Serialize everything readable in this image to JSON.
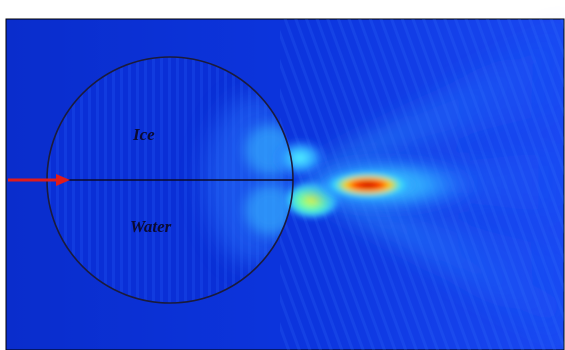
{
  "figure": {
    "labels": {
      "upper": "Ice",
      "lower": "Water"
    },
    "colors": {
      "field_background": "#0a2fd6",
      "field_light": "#1f5cff",
      "field_cyan": "#38d2ff",
      "field_yellow": "#f7ff20",
      "field_red": "#d61212",
      "circle_outline": "#1b1b3a",
      "arrow": "#e01b1b",
      "frame": "#000000"
    }
  }
}
